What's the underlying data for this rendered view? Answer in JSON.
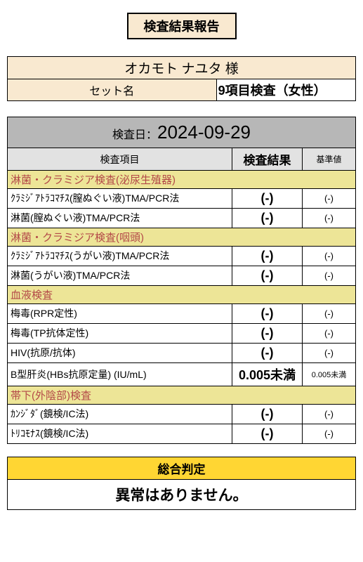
{
  "title": "検査結果報告",
  "patient": {
    "name": "オカモト ナユタ",
    "name_suffix": "様",
    "set_label": "セット名",
    "set_value": "9項目検査（女性）"
  },
  "exam": {
    "date_label": "検査日：",
    "date_value": "2024-09-29"
  },
  "headers": {
    "item": "検査項目",
    "result": "検査結果",
    "reference": "基準値"
  },
  "sections": [
    {
      "title": "淋菌・クラミジア検査(泌尿生殖器)",
      "rows": [
        {
          "item": "ｸﾗﾐｼﾞｱﾄﾗｺﾏﾁｽ(膣ぬぐい液)TMA/PCR法",
          "result": "(-)",
          "ref": "(-)"
        },
        {
          "item": "淋菌(膣ぬぐい液)TMA/PCR法",
          "result": "(-)",
          "ref": "(-)"
        }
      ]
    },
    {
      "title": "淋菌・クラミジア検査(咽頭)",
      "rows": [
        {
          "item": "ｸﾗﾐｼﾞｱﾄﾗｺﾏﾁｽ(うがい液)TMA/PCR法",
          "result": "(-)",
          "ref": "(-)"
        },
        {
          "item": "淋菌(うがい液)TMA/PCR法",
          "result": "(-)",
          "ref": "(-)"
        }
      ]
    },
    {
      "title": "血液検査",
      "rows": [
        {
          "item": "梅毒(RPR定性)",
          "result": "(-)",
          "ref": "(-)"
        },
        {
          "item": "梅毒(TP抗体定性)",
          "result": "(-)",
          "ref": "(-)"
        },
        {
          "item": "HIV(抗原/抗体)",
          "result": "(-)",
          "ref": "(-)"
        },
        {
          "item": "B型肝炎(HBs抗原定量) (IU/mL)",
          "result": "0.005未満",
          "ref": "0.005未満",
          "ref_small": true
        }
      ]
    },
    {
      "title": "帯下(外陰部)検査",
      "rows": [
        {
          "item": "ｶﾝｼﾞﾀﾞ(鏡検/IC法)",
          "result": "(-)",
          "ref": "(-)"
        },
        {
          "item": "ﾄﾘｺﾓﾅｽ(鏡検/IC法)",
          "result": "(-)",
          "ref": "(-)"
        }
      ]
    }
  ],
  "judgment": {
    "label": "総合判定",
    "value": "異常はありません。"
  },
  "colors": {
    "header_bg": "#f9e9d0",
    "date_bg": "#b7b7b7",
    "col_header_bg": "#e2e2e2",
    "section_bg": "#ede597",
    "section_text": "#b34848",
    "judgment_bg": "#ffd633"
  }
}
